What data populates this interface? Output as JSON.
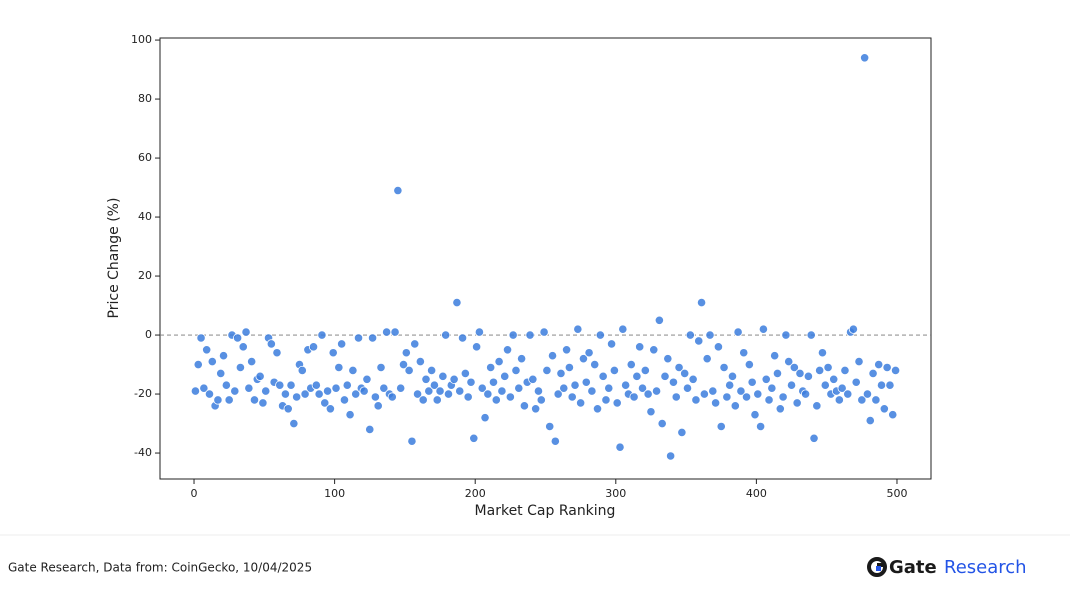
{
  "chart_data": {
    "type": "scatter",
    "xlabel": "Market Cap Ranking",
    "ylabel": "Price Change (%)",
    "color": "#3b7ddd",
    "xlim": [
      -24.2,
      524.2
    ],
    "xticks": [
      0,
      100,
      200,
      300,
      400,
      500
    ],
    "ylim": [
      -48.8,
      100.7
    ],
    "yticks": [
      -40,
      -20,
      0,
      20,
      40,
      60,
      80,
      100
    ],
    "hline": 0,
    "x": [
      1,
      3,
      5,
      7,
      9,
      11,
      13,
      15,
      17,
      19,
      21,
      23,
      25,
      27,
      29,
      31,
      33,
      35,
      37,
      39,
      41,
      43,
      45,
      47,
      49,
      51,
      53,
      55,
      57,
      59,
      61,
      63,
      65,
      67,
      69,
      71,
      73,
      75,
      77,
      79,
      81,
      83,
      85,
      87,
      89,
      91,
      93,
      95,
      97,
      99,
      101,
      103,
      105,
      107,
      109,
      111,
      113,
      115,
      117,
      119,
      121,
      123,
      125,
      127,
      129,
      131,
      133,
      135,
      137,
      139,
      141,
      143,
      145,
      147,
      149,
      151,
      153,
      155,
      157,
      159,
      161,
      163,
      165,
      167,
      169,
      171,
      173,
      175,
      177,
      179,
      181,
      183,
      185,
      187,
      189,
      191,
      193,
      195,
      197,
      199,
      201,
      203,
      205,
      207,
      209,
      211,
      213,
      215,
      217,
      219,
      221,
      223,
      225,
      227,
      229,
      231,
      233,
      235,
      237,
      239,
      241,
      243,
      245,
      247,
      249,
      251,
      253,
      255,
      257,
      259,
      261,
      263,
      265,
      267,
      269,
      271,
      273,
      275,
      277,
      279,
      281,
      283,
      285,
      287,
      289,
      291,
      293,
      295,
      297,
      299,
      301,
      303,
      305,
      307,
      309,
      311,
      313,
      315,
      317,
      319,
      321,
      323,
      325,
      327,
      329,
      331,
      333,
      335,
      337,
      339,
      341,
      343,
      345,
      347,
      349,
      351,
      353,
      355,
      357,
      359,
      361,
      363,
      365,
      367,
      369,
      371,
      373,
      375,
      377,
      379,
      381,
      383,
      385,
      387,
      389,
      391,
      393,
      395,
      397,
      399,
      401,
      403,
      405,
      407,
      409,
      411,
      413,
      415,
      417,
      419,
      421,
      423,
      425,
      427,
      429,
      431,
      433,
      435,
      437,
      439,
      441,
      443,
      445,
      447,
      449,
      451,
      453,
      455,
      457,
      459,
      461,
      463,
      465,
      467,
      469,
      471,
      473,
      475,
      477,
      479,
      481,
      483,
      485,
      487,
      489,
      491,
      493,
      495,
      497,
      499
    ],
    "values": [
      -19,
      -10,
      -1,
      -18,
      -5,
      -20,
      -9,
      -24,
      -22,
      -13,
      -7,
      -17,
      -22,
      0,
      -19,
      -1,
      -11,
      -4,
      1,
      -18,
      -9,
      -22,
      -15,
      -14,
      -23,
      -19,
      -1,
      -3,
      -16,
      -6,
      -17,
      -24,
      -20,
      -25,
      -17,
      -30,
      -21,
      -10,
      -12,
      -20,
      -5,
      -18,
      -4,
      -17,
      -20,
      0,
      -23,
      -19,
      -25,
      -6,
      -18,
      -11,
      -3,
      -22,
      -17,
      -27,
      -12,
      -20,
      -1,
      -18,
      -19,
      -15,
      -32,
      -1,
      -21,
      -24,
      -11,
      -18,
      1,
      -20,
      -21,
      1,
      49,
      -18,
      -10,
      -6,
      -12,
      -36,
      -3,
      -20,
      -9,
      -22,
      -15,
      -19,
      -12,
      -17,
      -22,
      -19,
      -14,
      0,
      -20,
      -17,
      -15,
      11,
      -19,
      -1,
      -13,
      -21,
      -16,
      -35,
      -4,
      1,
      -18,
      -28,
      -20,
      -11,
      -16,
      -22,
      -9,
      -19,
      -14,
      -5,
      -21,
      0,
      -12,
      -18,
      -8,
      -24,
      -16,
      0,
      -15,
      -25,
      -19,
      -22,
      1,
      -12,
      -31,
      -7,
      -36,
      -20,
      -13,
      -18,
      -5,
      -11,
      -21,
      -17,
      2,
      -23,
      -8,
      -16,
      -6,
      -19,
      -10,
      -25,
      0,
      -14,
      -22,
      -18,
      -3,
      -12,
      -23,
      -38,
      2,
      -17,
      -20,
      -10,
      -21,
      -14,
      -4,
      -18,
      -12,
      -20,
      -26,
      -5,
      -19,
      5,
      -30,
      -14,
      -8,
      -41,
      -16,
      -21,
      -11,
      -33,
      -13,
      -18,
      0,
      -15,
      -22,
      -2,
      11,
      -20,
      -8,
      0,
      -19,
      -23,
      -4,
      -31,
      -11,
      -21,
      -17,
      -14,
      -24,
      1,
      -19,
      -6,
      -21,
      -10,
      -16,
      -27,
      -20,
      -31,
      2,
      -15,
      -22,
      -18,
      -7,
      -13,
      -25,
      -21,
      0,
      -9,
      -17,
      -11,
      -23,
      -13,
      -19,
      -20,
      -14,
      0,
      -35,
      -24,
      -12,
      -6,
      -17,
      -11,
      -20,
      -15,
      -19,
      -22,
      -18,
      -12,
      -20,
      1,
      2,
      -16,
      -9,
      -22,
      94,
      -20,
      -29,
      -13,
      -22,
      -10,
      -17,
      -25,
      -11,
      -17,
      -27,
      -12
    ]
  },
  "footer": {
    "source": "Gate Research, Data from: CoinGecko, 10/04/2025",
    "brand": "Gate",
    "brand_suffix": "Research"
  }
}
